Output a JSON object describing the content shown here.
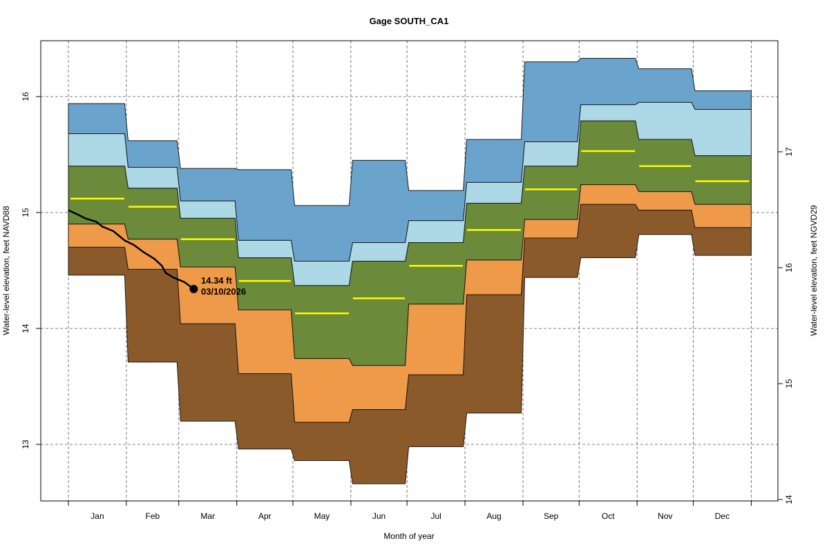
{
  "chart_data": {
    "type": "area",
    "title": "Gage SOUTH_CA1",
    "xlabel": "Month of year",
    "ylabel": "Water-level elevation, feet NAVD88",
    "ylabel_right": "Water-level elevation, feet NGVD29",
    "ylim": [
      12.52,
      16.49
    ],
    "yticks": [
      13,
      14,
      15,
      16
    ],
    "yticks_right": [
      14,
      15,
      16,
      17
    ],
    "right_axis_offset": 1.476,
    "grid": true,
    "categories": [
      "Jan",
      "Feb",
      "Mar",
      "Apr",
      "May",
      "Jun",
      "Jul",
      "Aug",
      "Sep",
      "Oct",
      "Nov",
      "Dec"
    ],
    "month_days": [
      31,
      28,
      31,
      30,
      31,
      30,
      31,
      31,
      30,
      31,
      30,
      31
    ],
    "band_colors": {
      "max_p90": "#6aa4cc",
      "p90_p75": "#add8e6",
      "p75_p25": "#6b8a3a",
      "p25_p10": "#ef9a48",
      "p10_min": "#8b5a2b",
      "median": "#ffff00",
      "current": "#000000"
    },
    "series": [
      {
        "name": "max",
        "values": [
          15.94,
          15.62,
          15.38,
          15.37,
          15.06,
          15.45,
          15.19,
          15.63,
          16.3,
          16.33,
          16.24,
          16.05
        ]
      },
      {
        "name": "p90",
        "values": [
          15.68,
          15.39,
          15.1,
          14.76,
          14.58,
          14.74,
          14.93,
          15.26,
          15.61,
          15.93,
          15.95,
          15.89
        ]
      },
      {
        "name": "p75",
        "values": [
          15.4,
          15.21,
          14.95,
          14.61,
          14.37,
          14.58,
          14.74,
          15.08,
          15.4,
          15.79,
          15.63,
          15.49
        ]
      },
      {
        "name": "median",
        "values": [
          15.12,
          15.05,
          14.77,
          14.41,
          14.13,
          14.26,
          14.54,
          14.85,
          15.2,
          15.53,
          15.4,
          15.27
        ]
      },
      {
        "name": "p25",
        "values": [
          14.9,
          14.77,
          14.53,
          14.16,
          13.74,
          13.68,
          14.21,
          14.59,
          14.94,
          15.24,
          15.18,
          15.07
        ]
      },
      {
        "name": "p10",
        "values": [
          14.7,
          14.51,
          14.04,
          13.61,
          13.19,
          13.3,
          13.6,
          14.29,
          14.78,
          15.07,
          15.02,
          14.87
        ]
      },
      {
        "name": "min",
        "values": [
          14.46,
          13.71,
          13.2,
          12.96,
          12.86,
          12.66,
          12.98,
          13.27,
          14.44,
          14.61,
          14.81,
          14.63
        ]
      }
    ],
    "current_year": {
      "name": "2026",
      "day_of_year": [
        1,
        5,
        10,
        16,
        19,
        25,
        28,
        31,
        36,
        41,
        47,
        51,
        53,
        57,
        63,
        68
      ],
      "values": [
        15.02,
        14.99,
        14.95,
        14.92,
        14.88,
        14.84,
        14.8,
        14.76,
        14.72,
        14.66,
        14.6,
        14.54,
        14.48,
        14.44,
        14.4,
        14.34
      ]
    },
    "annotation": {
      "value_label": "14.34 ft",
      "date_label": "03/10/2026"
    }
  }
}
